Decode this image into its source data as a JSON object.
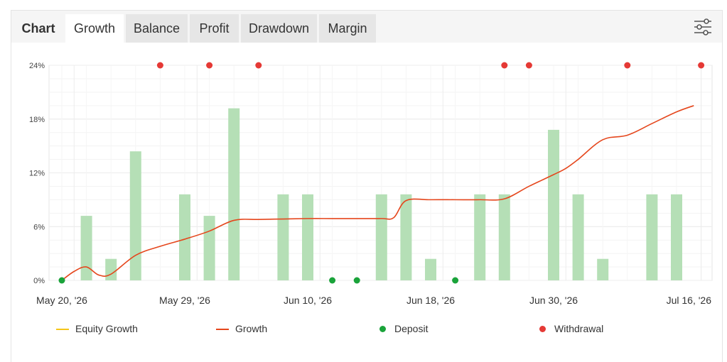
{
  "tabs": {
    "chart": "Chart",
    "items": [
      "Growth",
      "Balance",
      "Profit",
      "Drawdown",
      "Margin"
    ],
    "active": "Growth"
  },
  "icons": {
    "settings": "sliders-icon"
  },
  "colors": {
    "bar": "#b5dfb6",
    "growth_line": "#e5461c",
    "equity_line": "#f5c518",
    "deposit": "#1aa33a",
    "withdrawal": "#e53935",
    "grid": "#ececec"
  },
  "chart_data": {
    "type": "bar",
    "ylim": [
      0,
      24
    ],
    "y_ticks": [
      "0%",
      "6%",
      "12%",
      "18%",
      "24%"
    ],
    "x_ticks": [
      "May 20, '26",
      "May 29, '26",
      "Jun 10, '26",
      "Jun 18, '26",
      "Jun 30, '26",
      "Jul 16, '26"
    ],
    "grid": true,
    "legend_position": "bottom",
    "bars": [
      7.2,
      2.4,
      14.4,
      9.6,
      7.2,
      19.2,
      9.6,
      9.6,
      9.6,
      9.6,
      2.4,
      9.6,
      9.6,
      16.8,
      9.6,
      2.4,
      9.6,
      9.6
    ],
    "bar_slots": [
      1,
      2,
      3,
      5,
      6,
      7,
      9,
      10,
      13,
      14,
      15,
      17,
      18,
      20,
      21,
      22,
      24,
      25
    ],
    "growth_line": {
      "x": [
        0,
        0.5,
        1,
        1.5,
        2,
        3,
        4,
        5,
        6,
        7,
        8,
        9,
        10,
        11,
        12,
        13,
        13.5,
        14,
        15,
        16,
        17,
        18,
        19,
        20,
        20.5,
        21,
        22,
        23,
        24,
        25,
        25.7
      ],
      "y": [
        0,
        1.0,
        1.5,
        0.6,
        0.7,
        2.8,
        3.8,
        4.6,
        5.5,
        6.7,
        6.8,
        6.85,
        6.9,
        6.9,
        6.9,
        6.9,
        7.0,
        8.9,
        9.0,
        9.0,
        9.0,
        9.1,
        10.5,
        11.8,
        12.5,
        13.5,
        15.7,
        16.2,
        17.5,
        18.8,
        19.5
      ]
    },
    "deposits": [
      0,
      11,
      12,
      16
    ],
    "withdrawals": [
      4,
      6,
      8,
      18,
      19,
      23,
      26
    ],
    "legend": {
      "equity": "Equity Growth",
      "growth": "Growth",
      "deposit": "Deposit",
      "withdrawal": "Withdrawal"
    }
  }
}
